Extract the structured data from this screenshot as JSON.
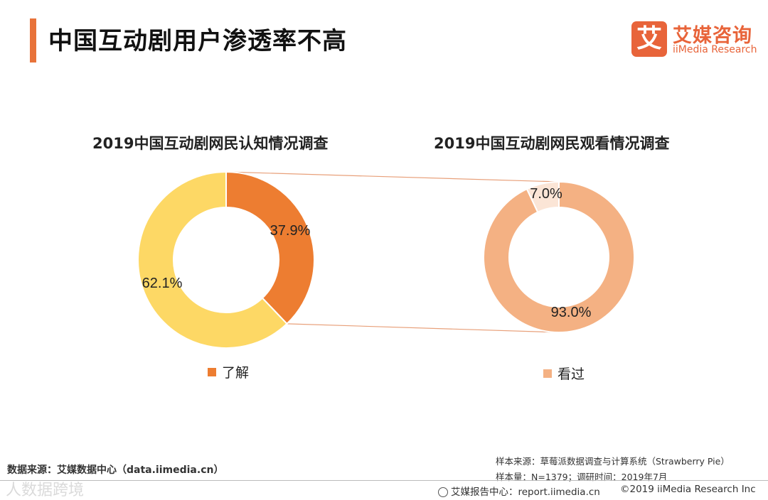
{
  "page": {
    "title": "中国互动剧用户渗透率不高"
  },
  "logo": {
    "mark": "艾",
    "name_cn": "艾媒咨询",
    "name_en": "iiMedia Research"
  },
  "chart_data": [
    {
      "type": "pie",
      "variant": "donut",
      "title": "2019中国互动剧网民认知情况调查",
      "slices": [
        {
          "label": "了解",
          "value": 37.9,
          "display": "37.9%",
          "color": "#ed7d31"
        },
        {
          "label": "",
          "value": 62.1,
          "display": "62.1%",
          "color": "#fdd865"
        }
      ],
      "legend": [
        {
          "label": "了解",
          "color": "#ed7d31"
        }
      ]
    },
    {
      "type": "pie",
      "variant": "donut",
      "title": "2019中国互动剧网民观看情况调查",
      "slices": [
        {
          "label": "看过",
          "value": 93.0,
          "display": "93.0%",
          "color": "#f4b183"
        },
        {
          "label": "",
          "value": 7.0,
          "display": "7.0%",
          "color": "#fbe5d6"
        }
      ],
      "legend": [
        {
          "label": "看过",
          "color": "#f4b183"
        }
      ]
    }
  ],
  "footer": {
    "data_source": "数据来源：艾媒数据中心（data.iimedia.cn）",
    "sample_source": "样本来源：草莓派数据调查与计算系统（Strawberry Pie）",
    "sample_info": "样本量：N=1379；调研时间：2019年7月",
    "report_center": "艾媒报告中心：report.iimedia.cn",
    "copyright": "©2019  iiMedia Research  Inc",
    "watermark": "人数据",
    "watermark_extra": "跨境"
  }
}
